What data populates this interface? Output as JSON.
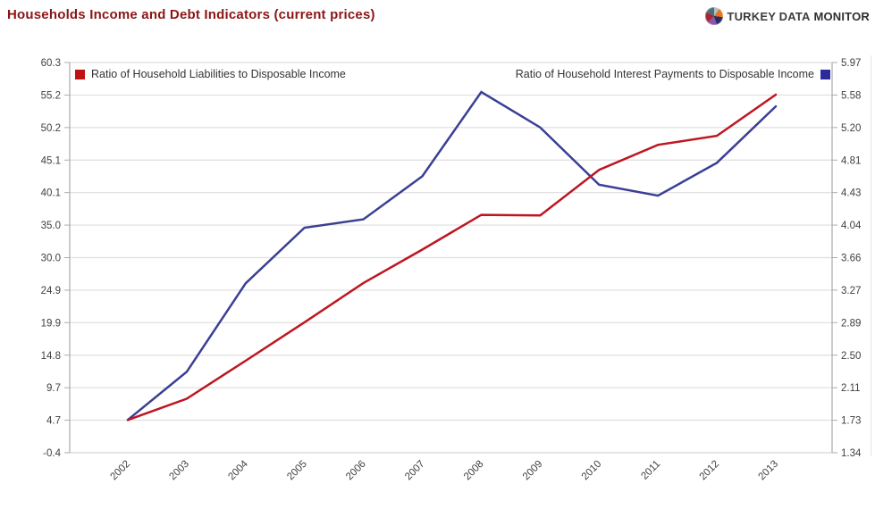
{
  "header": {
    "title": "Households Income and Debt Indicators (current prices)",
    "logo": {
      "brand_first": "TURKEY DATA",
      "brand_last": "MONITOR",
      "icon": "pie-chart-icon"
    }
  },
  "colors": {
    "title": "#8B1515",
    "series_liabilities": "#BE1621",
    "series_interest": "#3A3F94",
    "gridline": "#DEDEDE",
    "axis_border": "#ABABAB",
    "tick_text": "#404040"
  },
  "chart_data": {
    "type": "line",
    "title": "Households Income and Debt Indicators (current prices)",
    "x": [
      "2002",
      "2003",
      "2004",
      "2005",
      "2006",
      "2007",
      "2008",
      "2009",
      "2010",
      "2011",
      "2012",
      "2013"
    ],
    "left_axis": {
      "label": "",
      "min": -0.4,
      "max": 60.3,
      "ticks": [
        "60.3",
        "55.2",
        "50.2",
        "45.1",
        "40.1",
        "35.0",
        "30.0",
        "24.9",
        "19.9",
        "14.8",
        "9.7",
        "4.7",
        "-0.4"
      ]
    },
    "right_axis": {
      "label": "",
      "min": 1.34,
      "max": 5.97,
      "ticks": [
        "5.97",
        "5.58",
        "5.20",
        "4.81",
        "4.43",
        "4.04",
        "3.66",
        "3.27",
        "2.89",
        "2.50",
        "2.11",
        "1.73",
        "1.34"
      ]
    },
    "grid": true,
    "legend_position": "top-inside",
    "series": [
      {
        "name": "Ratio of Household Liabilities to Disposable Income",
        "axis": "left",
        "color": "#BE1621",
        "values": [
          4.7,
          8.0,
          13.9,
          19.9,
          26.0,
          31.2,
          36.6,
          36.5,
          43.6,
          47.5,
          48.9,
          55.3
        ]
      },
      {
        "name": "Ratio of Household Interest Payments to Disposable Income",
        "axis": "right",
        "color": "#3A3F94",
        "values": [
          1.73,
          2.3,
          3.35,
          4.01,
          4.11,
          4.62,
          5.62,
          5.2,
          4.52,
          4.39,
          4.78,
          5.45
        ]
      }
    ]
  }
}
